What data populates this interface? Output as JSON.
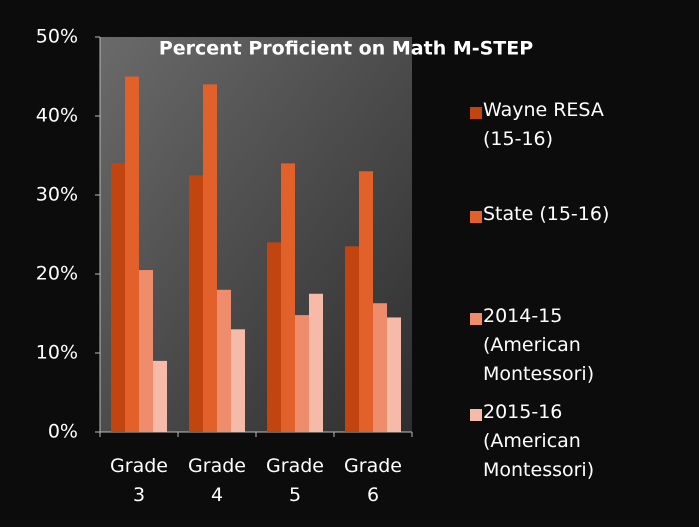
{
  "chart_data": {
    "type": "bar",
    "title": "Percent Proficient on Math M-STEP",
    "categories": [
      "Grade 3",
      "Grade 4",
      "Grade 5",
      "Grade 6"
    ],
    "series": [
      {
        "name": "Wayne RESA (15-16)",
        "color": "#c2450f",
        "values": [
          34,
          32.5,
          24,
          23.5
        ]
      },
      {
        "name": "State (15-16)",
        "color": "#e2602a",
        "values": [
          45,
          44,
          34,
          33
        ]
      },
      {
        "name": "2014-15 (American Montessori)",
        "color": "#ef8c6c",
        "values": [
          20.5,
          18,
          14.8,
          16.3
        ]
      },
      {
        "name": "2015-16 (American Montessori)",
        "color": "#f6bba8",
        "values": [
          9,
          13,
          17.5,
          14.5
        ]
      }
    ],
    "ylim": [
      0,
      50
    ],
    "yticks": [
      {
        "value": 0,
        "label": "0%"
      },
      {
        "value": 10,
        "label": "10%"
      },
      {
        "value": 20,
        "label": "20%"
      },
      {
        "value": 30,
        "label": "30%"
      },
      {
        "value": 40,
        "label": "40%"
      },
      {
        "value": 50,
        "label": "50%"
      }
    ],
    "legend": "right"
  }
}
